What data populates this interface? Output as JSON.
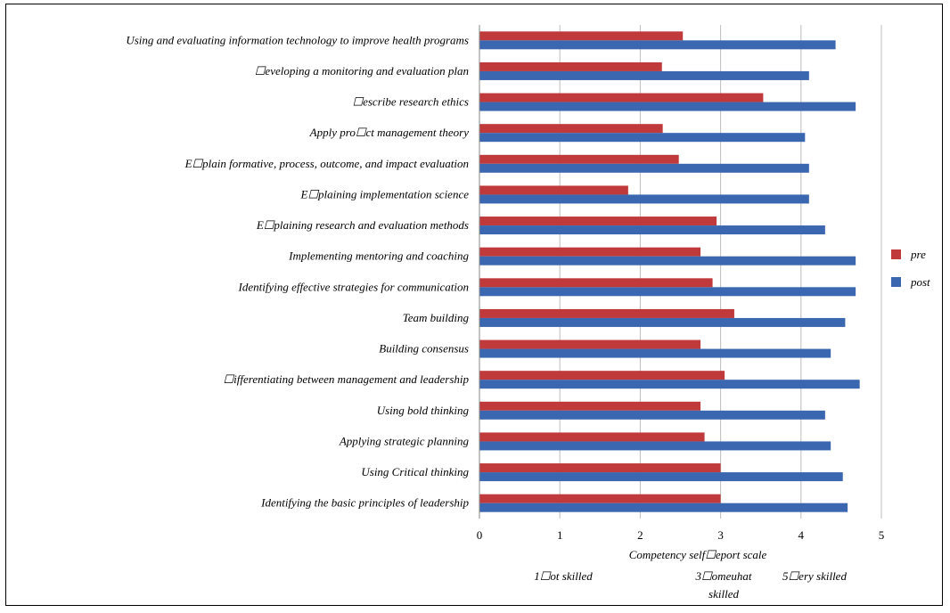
{
  "chart_data": {
    "type": "bar",
    "orientation": "horizontal",
    "categories": [
      "Using and evaluating information technology to improve health programs",
      "☐eveloping a monitoring and evaluation plan",
      "☐escribe research ethics",
      "Apply pro☐ct management theory",
      "E☐plain formative, process, outcome, and impact evaluation",
      "E☐plaining implementation science",
      "E☐plaining research and evaluation methods",
      "Implementing mentoring and coaching",
      "Identifying effective strategies for communication",
      "Team building",
      "Building consensus",
      "☐ifferentiating between management and leadership",
      "Using bold thinking",
      "Applying strategic planning",
      "Using Critical thinking",
      "Identifying the basic principles of leadership"
    ],
    "series": [
      {
        "name": "pre",
        "color": "#c0393b",
        "values": [
          2.53,
          2.27,
          3.53,
          2.28,
          2.48,
          1.85,
          2.95,
          2.75,
          2.9,
          3.17,
          2.75,
          3.05,
          2.75,
          2.8,
          3.0,
          3.0
        ]
      },
      {
        "name": "post",
        "color": "#3b66b0",
        "values": [
          4.43,
          4.1,
          4.68,
          4.05,
          4.1,
          4.1,
          4.3,
          4.68,
          4.68,
          4.55,
          4.37,
          4.73,
          4.3,
          4.37,
          4.52,
          4.58
        ]
      }
    ],
    "xlim": [
      0,
      5
    ],
    "xticks": [
      "0",
      "1",
      "2",
      "3",
      "4",
      "5"
    ],
    "xlabel": "Competency self☐eport scale",
    "scale_notes": [
      "1☐ot skilled",
      "3☐omeuhat",
      "skilled",
      "5☐ery skilled"
    ],
    "grid": "vertical",
    "legend_position": "right"
  }
}
